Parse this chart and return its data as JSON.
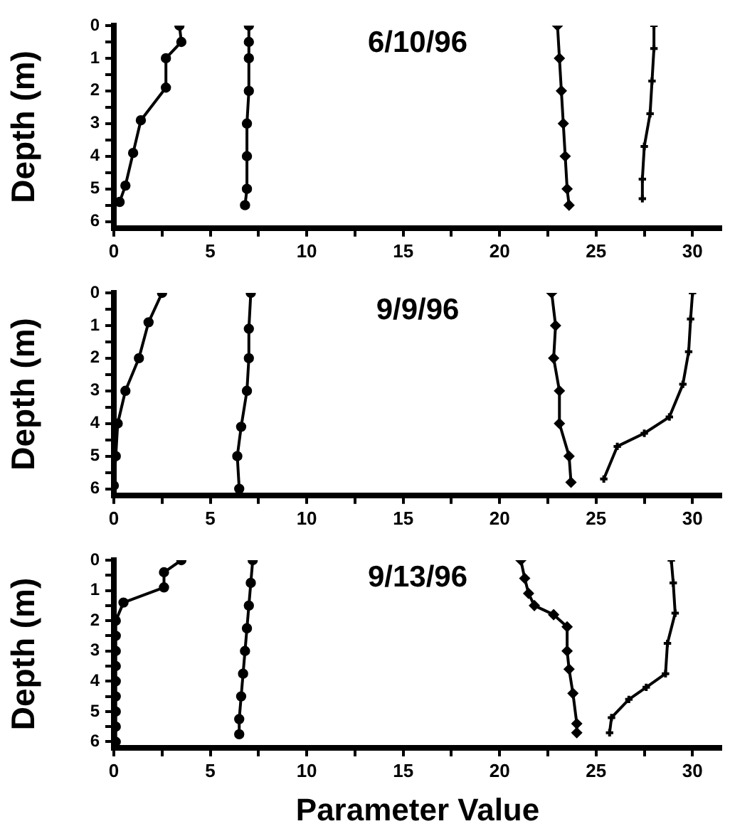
{
  "chart_data": [
    {
      "type": "line",
      "title": "6/10/96",
      "ylabel": "Depth (m)",
      "xlim": [
        0,
        31.5
      ],
      "ylim": [
        6.2,
        0
      ],
      "xticks": [
        0,
        {
          "value": 2.5,
          "label": null
        },
        5,
        {
          "value": 7.5,
          "label": null
        },
        10,
        {
          "value": 12.5,
          "label": null
        },
        15,
        {
          "value": 17.5,
          "label": null
        },
        20,
        {
          "value": 22.5,
          "label": null
        },
        25,
        {
          "value": 27.5,
          "label": null
        },
        30
      ],
      "yticks": [
        0,
        {
          "value": 0.5,
          "label": null
        },
        1,
        {
          "value": 1.5,
          "label": null
        },
        2,
        {
          "value": 2.5,
          "label": null
        },
        3,
        {
          "value": 3.5,
          "label": null
        },
        4,
        {
          "value": 4.5,
          "label": null
        },
        5,
        {
          "value": 5.5,
          "label": null
        },
        6
      ],
      "grid": false,
      "series": [
        {
          "color": "#000000",
          "marker": "circle",
          "x": [
            3.4,
            3.5,
            2.7,
            2.7,
            1.4,
            1.0,
            0.6,
            0.3
          ],
          "values": [
            0,
            0.5,
            1,
            1.9,
            2.9,
            3.9,
            4.9,
            5.4
          ]
        },
        {
          "color": "#000000",
          "marker": "circle",
          "x": [
            7.0,
            7.0,
            7.0,
            7.0,
            6.9,
            6.9,
            6.9,
            6.8
          ],
          "values": [
            0,
            0.5,
            1,
            2,
            3,
            4,
            5,
            5.5
          ]
        },
        {
          "color": "#000000",
          "marker": "diamond",
          "x": [
            23.0,
            23.1,
            23.2,
            23.3,
            23.4,
            23.5,
            23.6
          ],
          "values": [
            0,
            1,
            2,
            3,
            4,
            5,
            5.5
          ]
        },
        {
          "color": "#000000",
          "marker": "cross",
          "x": [
            28.0,
            28.0,
            27.9,
            27.8,
            27.5,
            27.4,
            27.4
          ],
          "values": [
            0,
            0.7,
            1.7,
            2.7,
            3.7,
            4.7,
            5.3
          ]
        }
      ]
    },
    {
      "type": "line",
      "title": "9/9/96",
      "ylabel": "Depth (m)",
      "xlim": [
        0,
        31.5
      ],
      "ylim": [
        6.2,
        0
      ],
      "xticks": [
        0,
        {
          "value": 2.5,
          "label": null
        },
        5,
        {
          "value": 7.5,
          "label": null
        },
        10,
        {
          "value": 12.5,
          "label": null
        },
        15,
        {
          "value": 17.5,
          "label": null
        },
        20,
        {
          "value": 22.5,
          "label": null
        },
        25,
        {
          "value": 27.5,
          "label": null
        },
        30
      ],
      "yticks": [
        0,
        {
          "value": 0.5,
          "label": null
        },
        1,
        {
          "value": 1.5,
          "label": null
        },
        2,
        {
          "value": 2.5,
          "label": null
        },
        3,
        {
          "value": 3.5,
          "label": null
        },
        4,
        {
          "value": 4.5,
          "label": null
        },
        5,
        {
          "value": 5.5,
          "label": null
        },
        6
      ],
      "grid": false,
      "series": [
        {
          "color": "#000000",
          "marker": "circle",
          "x": [
            2.5,
            1.8,
            1.3,
            0.6,
            0.2,
            0.1,
            0.0
          ],
          "values": [
            0,
            0.9,
            2,
            3,
            4,
            5,
            5.9
          ]
        },
        {
          "color": "#000000",
          "marker": "circle",
          "x": [
            7.1,
            7.0,
            7.0,
            6.9,
            6.6,
            6.4,
            6.5
          ],
          "values": [
            0,
            1.1,
            2,
            3,
            4.1,
            5,
            6
          ]
        },
        {
          "color": "#000000",
          "marker": "diamond",
          "x": [
            22.7,
            22.9,
            22.8,
            23.1,
            23.1,
            23.6,
            23.7
          ],
          "values": [
            0,
            1,
            2,
            3,
            4,
            5,
            5.8
          ]
        },
        {
          "color": "#000000",
          "marker": "cross",
          "x": [
            30.0,
            29.9,
            29.8,
            29.5,
            28.8,
            27.5,
            26.1,
            25.4
          ],
          "values": [
            0,
            0.8,
            1.8,
            2.8,
            3.8,
            4.3,
            4.7,
            5.7
          ]
        }
      ]
    },
    {
      "type": "line",
      "title": "9/13/96",
      "ylabel": "Depth (m)",
      "xlabel": "Parameter Value",
      "xlim": [
        0,
        31.5
      ],
      "ylim": [
        6.2,
        0
      ],
      "xticks": [
        0,
        {
          "value": 2.5,
          "label": null
        },
        5,
        {
          "value": 7.5,
          "label": null
        },
        10,
        {
          "value": 12.5,
          "label": null
        },
        15,
        {
          "value": 17.5,
          "label": null
        },
        20,
        {
          "value": 22.5,
          "label": null
        },
        25,
        {
          "value": 27.5,
          "label": null
        },
        30
      ],
      "yticks": [
        0,
        {
          "value": 0.5,
          "label": null
        },
        1,
        {
          "value": 1.5,
          "label": null
        },
        2,
        {
          "value": 2.5,
          "label": null
        },
        3,
        {
          "value": 3.5,
          "label": null
        },
        4,
        {
          "value": 4.5,
          "label": null
        },
        5,
        {
          "value": 5.5,
          "label": null
        },
        6
      ],
      "grid": false,
      "series": [
        {
          "color": "#000000",
          "marker": "circle",
          "x": [
            3.5,
            2.6,
            2.6,
            0.5,
            0.1,
            0.1,
            0.1,
            0.1,
            0.1,
            0.1,
            0.1,
            0.1,
            0.1
          ],
          "values": [
            0,
            0.4,
            0.9,
            1.4,
            2,
            2.5,
            3,
            3.5,
            4,
            4.5,
            5,
            5.5,
            6
          ]
        },
        {
          "color": "#000000",
          "marker": "circle",
          "x": [
            7.2,
            7.1,
            7.0,
            6.9,
            6.8,
            6.7,
            6.6,
            6.5,
            6.5
          ],
          "values": [
            0,
            0.75,
            1.5,
            2.25,
            3,
            3.75,
            4.5,
            5.25,
            5.75
          ]
        },
        {
          "color": "#000000",
          "marker": "diamond",
          "x": [
            21.1,
            21.3,
            21.5,
            21.8,
            22.8,
            23.5,
            23.5,
            23.6,
            23.8,
            24.0,
            24.0
          ],
          "values": [
            0,
            0.6,
            1.1,
            1.5,
            1.8,
            2.2,
            3,
            3.6,
            4.4,
            5.4,
            5.7
          ]
        },
        {
          "color": "#000000",
          "marker": "cross",
          "x": [
            28.9,
            29.0,
            29.1,
            28.7,
            28.6,
            27.6,
            26.7,
            25.8,
            25.7
          ],
          "values": [
            0,
            0.75,
            1.75,
            2.75,
            3.75,
            4.2,
            4.6,
            5.2,
            5.7
          ]
        }
      ]
    }
  ]
}
